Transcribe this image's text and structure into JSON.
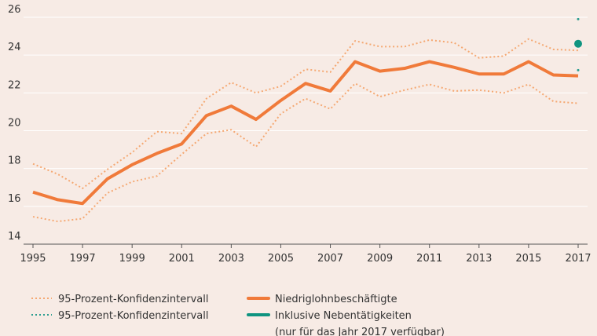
{
  "chart_data": {
    "type": "line",
    "x": [
      1995,
      1996,
      1997,
      1998,
      1999,
      2000,
      2001,
      2002,
      2003,
      2004,
      2005,
      2006,
      2007,
      2008,
      2009,
      2010,
      2011,
      2012,
      2013,
      2014,
      2015,
      2016,
      2017
    ],
    "xlim": [
      1995,
      2017
    ],
    "xticks": [
      1995,
      1997,
      1999,
      2001,
      2003,
      2005,
      2007,
      2009,
      2011,
      2013,
      2015,
      2017
    ],
    "ylim": [
      14,
      26
    ],
    "yticks": [
      14,
      16,
      18,
      20,
      22,
      24,
      26
    ],
    "grid": true,
    "series": [
      {
        "name": "95-Prozent-Konfidenzintervall",
        "color": "#f5a872",
        "style": "dotted",
        "upper": [
          18.25,
          17.7,
          16.95,
          17.95,
          18.85,
          19.95,
          19.85,
          21.7,
          22.55,
          22.0,
          22.35,
          23.25,
          23.1,
          24.75,
          24.45,
          24.45,
          24.8,
          24.65,
          23.85,
          23.95,
          24.85,
          24.3,
          24.25
        ],
        "lower": [
          15.45,
          15.2,
          15.35,
          16.7,
          17.3,
          17.6,
          18.75,
          19.85,
          20.05,
          19.15,
          20.9,
          21.7,
          21.15,
          22.5,
          21.8,
          22.15,
          22.45,
          22.1,
          22.15,
          22.0,
          22.45,
          21.55,
          21.45
        ]
      },
      {
        "name": "95-Prozent-Konfidenzintervall",
        "color": "#2a9d8f",
        "style": "dotted",
        "upper": [
          null,
          null,
          null,
          null,
          null,
          null,
          null,
          null,
          null,
          null,
          null,
          null,
          null,
          null,
          null,
          null,
          null,
          null,
          null,
          null,
          null,
          null,
          25.9
        ],
        "lower": [
          null,
          null,
          null,
          null,
          null,
          null,
          null,
          null,
          null,
          null,
          null,
          null,
          null,
          null,
          null,
          null,
          null,
          null,
          null,
          null,
          null,
          null,
          23.2
        ]
      },
      {
        "name": "Niedriglohnbeschäftigte",
        "color": "#f07a3a",
        "style": "solid",
        "values": [
          16.75,
          16.35,
          16.15,
          17.45,
          18.2,
          18.8,
          19.3,
          20.8,
          21.3,
          20.6,
          21.6,
          22.5,
          22.1,
          23.65,
          23.15,
          23.3,
          23.65,
          23.35,
          23.0,
          23.0,
          23.65,
          22.95,
          22.9
        ]
      },
      {
        "name": "Inklusive Nebentätigkeiten",
        "note": "(nur für das Jahr 2017 verfügbar)",
        "color": "#0f9480",
        "style": "solid",
        "values": [
          null,
          null,
          null,
          null,
          null,
          null,
          null,
          null,
          null,
          null,
          null,
          null,
          null,
          null,
          null,
          null,
          null,
          null,
          null,
          null,
          null,
          null,
          24.6
        ]
      }
    ]
  }
}
